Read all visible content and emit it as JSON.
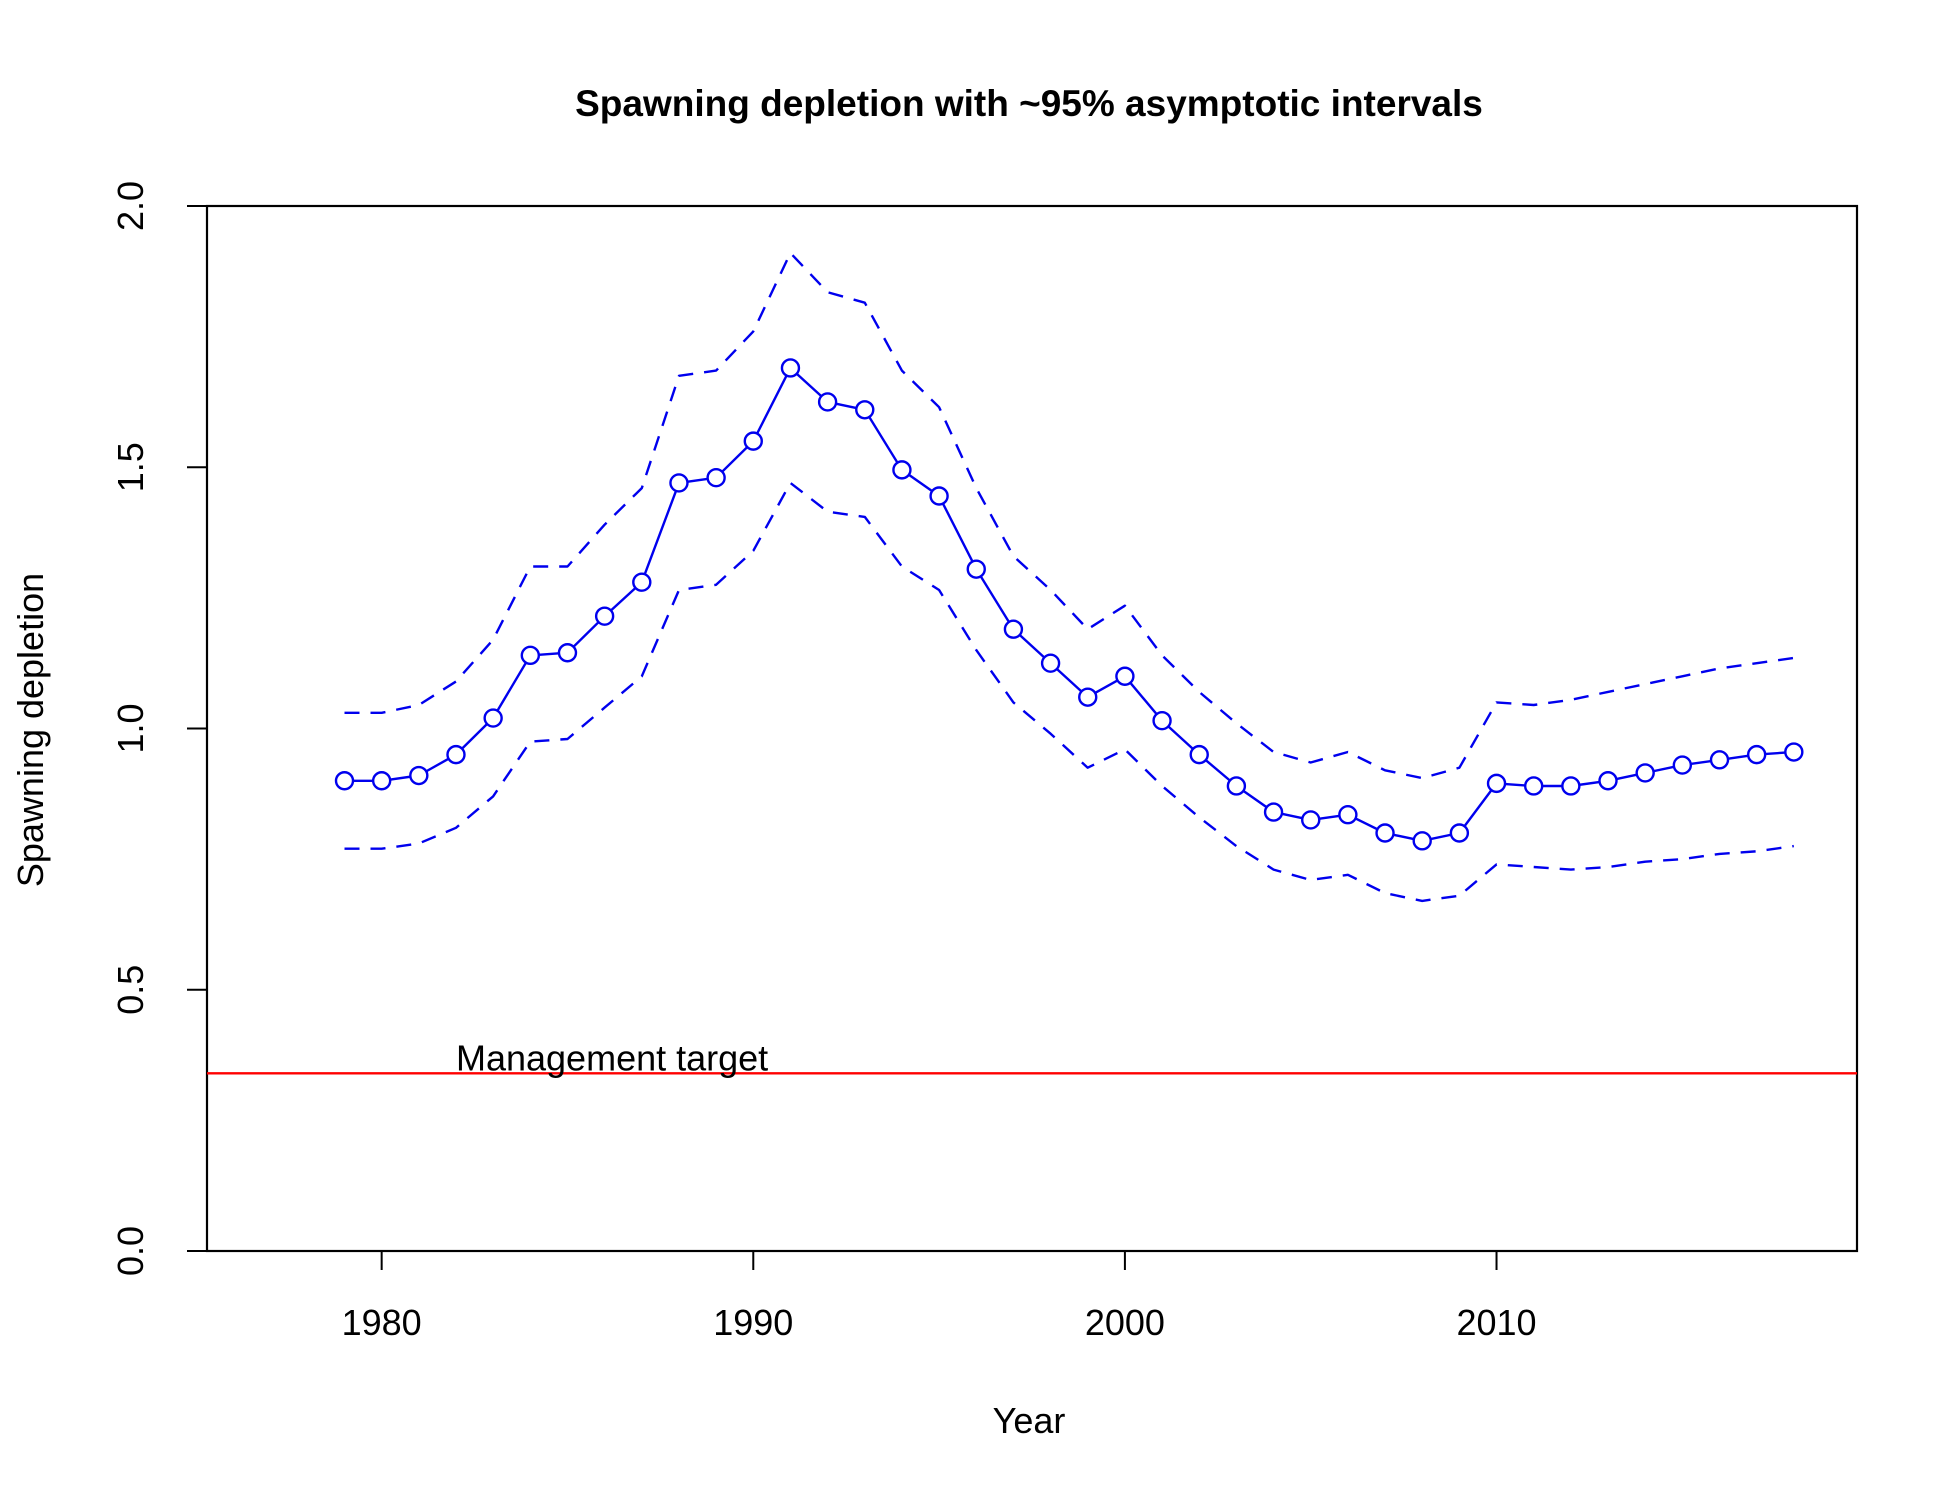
{
  "chart_data": {
    "type": "line",
    "title": "Spawning depletion with ~95% asymptotic intervals",
    "xlabel": "Year",
    "ylabel": "Spawning depletion",
    "xlim": [
      1975.3,
      2019.7
    ],
    "ylim": [
      0,
      2
    ],
    "x_ticks": [
      1980,
      1990,
      2000,
      2010
    ],
    "x_tick_labels": [
      "1980",
      "1990",
      "2000",
      "2010"
    ],
    "y_ticks": [
      0,
      0.5,
      1,
      1.5,
      2
    ],
    "y_tick_labels": [
      "0.0",
      "0.5",
      "1.0",
      "1.5",
      "2.0"
    ],
    "grid": false,
    "colors": {
      "series": "#0000ee",
      "target": "#ff0000",
      "axis": "#000000"
    },
    "x": [
      1979,
      1980,
      1981,
      1982,
      1983,
      1984,
      1985,
      1986,
      1987,
      1988,
      1989,
      1990,
      1991,
      1992,
      1993,
      1994,
      1995,
      1996,
      1997,
      1998,
      1999,
      2000,
      2001,
      2002,
      2003,
      2004,
      2005,
      2006,
      2007,
      2008,
      2009,
      2010,
      2011,
      2012,
      2013,
      2014,
      2015,
      2016,
      2017,
      2018
    ],
    "series": [
      {
        "role": "estimate",
        "style": "solid-with-circles",
        "values": [
          0.9,
          0.9,
          0.91,
          0.95,
          1.02,
          1.14,
          1.145,
          1.215,
          1.28,
          1.47,
          1.48,
          1.55,
          1.69,
          1.625,
          1.61,
          1.495,
          1.445,
          1.305,
          1.19,
          1.125,
          1.06,
          1.1,
          1.015,
          0.95,
          0.89,
          0.84,
          0.825,
          0.835,
          0.8,
          0.785,
          0.8,
          0.895,
          0.89,
          0.89,
          0.9,
          0.915,
          0.93,
          0.94,
          0.95,
          0.955
        ]
      },
      {
        "role": "upper-interval",
        "style": "dashed",
        "values": [
          1.03,
          1.03,
          1.045,
          1.09,
          1.17,
          1.31,
          1.31,
          1.39,
          1.46,
          1.675,
          1.685,
          1.76,
          1.91,
          1.835,
          1.815,
          1.685,
          1.615,
          1.46,
          1.33,
          1.265,
          1.19,
          1.235,
          1.14,
          1.07,
          1.01,
          0.955,
          0.935,
          0.955,
          0.92,
          0.905,
          0.925,
          1.05,
          1.045,
          1.055,
          1.07,
          1.085,
          1.1,
          1.115,
          1.125,
          1.135
        ]
      },
      {
        "role": "lower-interval",
        "style": "dashed",
        "values": [
          0.77,
          0.77,
          0.78,
          0.81,
          0.87,
          0.975,
          0.98,
          1.04,
          1.1,
          1.265,
          1.275,
          1.34,
          1.47,
          1.415,
          1.405,
          1.31,
          1.265,
          1.15,
          1.05,
          0.99,
          0.925,
          0.96,
          0.89,
          0.83,
          0.775,
          0.73,
          0.71,
          0.72,
          0.685,
          0.67,
          0.68,
          0.74,
          0.735,
          0.73,
          0.735,
          0.745,
          0.75,
          0.76,
          0.765,
          0.775
        ]
      }
    ],
    "reference_line": {
      "y": 0.34,
      "label": "Management target",
      "label_x": 1982
    }
  }
}
